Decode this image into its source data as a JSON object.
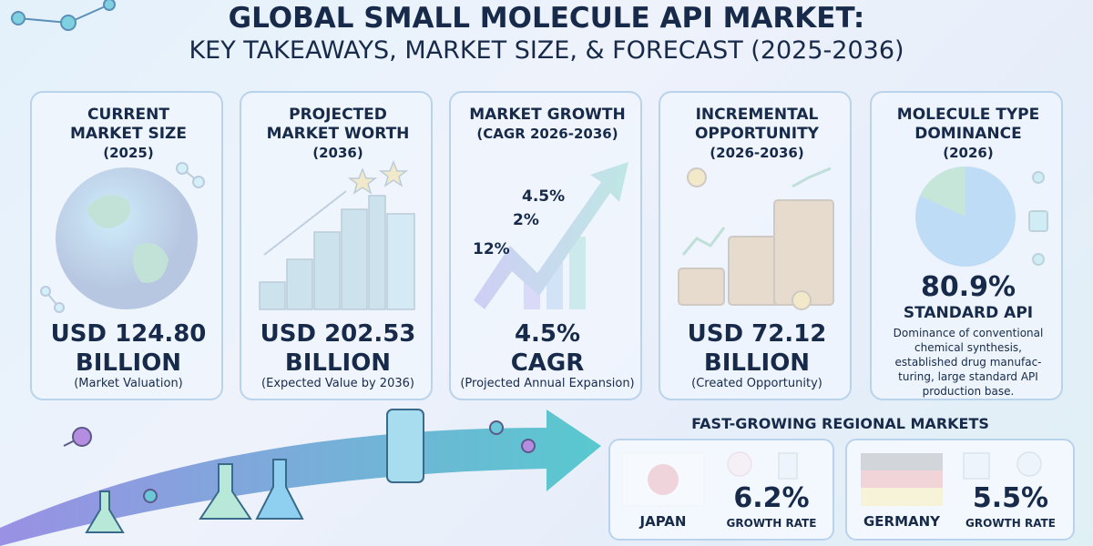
{
  "header": {
    "title": "GLOBAL SMALL MOLECULE API MARKET:",
    "subtitle": "KEY TAKEAWAYS, MARKET SIZE, & FORECAST (2025-2036)"
  },
  "cards": [
    {
      "heading": [
        "CURRENT",
        "MARKET SIZE",
        "(2025)"
      ],
      "value": [
        "USD 124.80",
        "BILLION"
      ],
      "caption": "(Market Valuation)"
    },
    {
      "heading": [
        "PROJECTED",
        "MARKET WORTH",
        "(2036)"
      ],
      "value": [
        "USD 202.53",
        "BILLION"
      ],
      "caption": "(Expected Value by 2036)"
    },
    {
      "heading": [
        "MARKET GROWTH",
        "(CAGR 2026-2036)"
      ],
      "chart_labels": [
        "4.5%",
        "2%",
        "12%"
      ],
      "value": [
        "4.5%",
        "CAGR"
      ],
      "caption": "(Projected Annual Expansion)"
    },
    {
      "heading": [
        "INCREMENTAL",
        "OPPORTUNITY",
        "(2026-2036)"
      ],
      "value": [
        "USD 72.12",
        "BILLION"
      ],
      "caption": "(Created Opportunity)"
    },
    {
      "heading": [
        "MOLECULE TYPE",
        "DOMINANCE",
        "(2026)"
      ],
      "value": [
        "80.9%",
        "STANDARD API"
      ],
      "description": [
        "Dominance of conventional",
        "chemical synthesis,",
        "established drug manufac-",
        "turing, large standard API",
        "production base."
      ]
    }
  ],
  "regional": {
    "title": "FAST-GROWING REGIONAL MARKETS",
    "markets": [
      {
        "country": "JAPAN",
        "value": "6.2%",
        "label": "GROWTH RATE"
      },
      {
        "country": "GERMANY",
        "value": "5.5%",
        "label": "GROWTH RATE"
      }
    ]
  }
}
